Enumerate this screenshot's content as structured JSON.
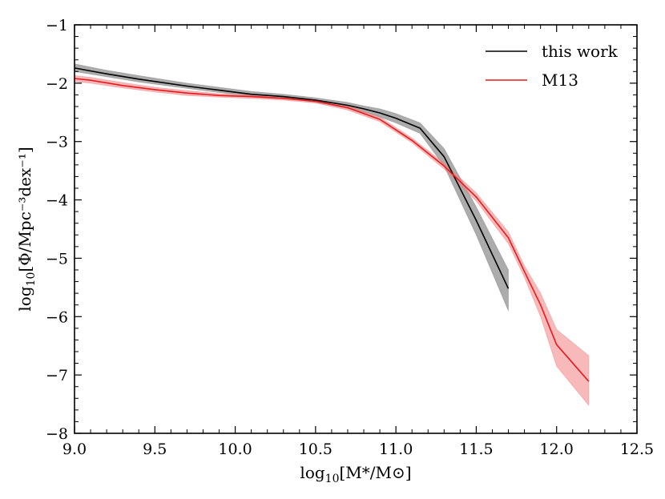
{
  "chart_data": {
    "type": "line",
    "title": "",
    "xlabel": "log10[M*/M⊙]",
    "ylabel": "log10[Φ/Mpc⁻³dex⁻¹]",
    "xlabel_parts": {
      "log": "log",
      "sub": "10",
      "body": "[M*/M⊙]"
    },
    "ylabel_parts": {
      "log": "log",
      "sub": "10",
      "body": "[Φ/Mpc⁻³dex⁻¹]"
    },
    "xlim": [
      9.0,
      12.5
    ],
    "ylim": [
      -8,
      -1
    ],
    "x_ticks": [
      9.0,
      9.5,
      10.0,
      10.5,
      11.0,
      11.5,
      12.0,
      12.5
    ],
    "x_tick_labels": [
      "9.0",
      "9.5",
      "10.0",
      "10.5",
      "11.0",
      "11.5",
      "12.0",
      "12.5"
    ],
    "y_ticks": [
      -8,
      -7,
      -6,
      -5,
      -4,
      -3,
      -2,
      -1
    ],
    "y_tick_labels": [
      "−8",
      "−7",
      "−6",
      "−5",
      "−4",
      "−3",
      "−2",
      "−1"
    ],
    "x_minor_step": 0.1,
    "y_minor_step": 0.2,
    "grid": false,
    "legend_position": "top-right",
    "series": [
      {
        "name": "this work",
        "color": "#000000",
        "band_color": "#808080",
        "x": [
          9.0,
          9.2,
          9.4,
          9.7,
          9.9,
          10.1,
          10.3,
          10.5,
          10.7,
          10.8,
          10.9,
          11.0,
          11.15,
          11.3,
          11.5,
          11.7
        ],
        "y": [
          -1.74,
          -1.84,
          -1.93,
          -2.05,
          -2.12,
          -2.19,
          -2.23,
          -2.29,
          -2.38,
          -2.44,
          -2.51,
          -2.6,
          -2.77,
          -3.26,
          -4.35,
          -5.52
        ],
        "y_low": [
          -1.8,
          -1.89,
          -1.98,
          -2.09,
          -2.16,
          -2.22,
          -2.26,
          -2.33,
          -2.43,
          -2.5,
          -2.58,
          -2.68,
          -2.86,
          -3.42,
          -4.6,
          -5.9
        ],
        "y_high": [
          -1.67,
          -1.78,
          -1.87,
          -2.0,
          -2.07,
          -2.14,
          -2.19,
          -2.25,
          -2.33,
          -2.39,
          -2.44,
          -2.52,
          -2.68,
          -3.12,
          -4.12,
          -5.2
        ]
      },
      {
        "name": "M13",
        "color": "#e8191c",
        "band_color": "#f08080",
        "x": [
          9.0,
          9.1,
          9.3,
          9.5,
          9.7,
          9.9,
          10.1,
          10.3,
          10.5,
          10.7,
          10.9,
          11.1,
          11.3,
          11.5,
          11.7,
          11.8,
          11.9,
          12.0,
          12.2
        ],
        "y": [
          -1.92,
          -1.95,
          -2.04,
          -2.11,
          -2.17,
          -2.21,
          -2.23,
          -2.26,
          -2.31,
          -2.42,
          -2.62,
          -2.98,
          -3.42,
          -3.95,
          -4.65,
          -5.23,
          -5.8,
          -6.48,
          -7.11
        ],
        "y_low": [
          -1.97,
          -2.0,
          -2.08,
          -2.15,
          -2.21,
          -2.24,
          -2.26,
          -2.29,
          -2.34,
          -2.46,
          -2.66,
          -3.02,
          -3.47,
          -4.02,
          -4.75,
          -5.33,
          -6.0,
          -6.85,
          -7.52
        ],
        "y_high": [
          -1.87,
          -1.9,
          -1.99,
          -2.07,
          -2.13,
          -2.18,
          -2.2,
          -2.23,
          -2.28,
          -2.38,
          -2.58,
          -2.94,
          -3.37,
          -3.88,
          -4.55,
          -5.13,
          -5.6,
          -6.22,
          -6.67
        ]
      }
    ]
  }
}
